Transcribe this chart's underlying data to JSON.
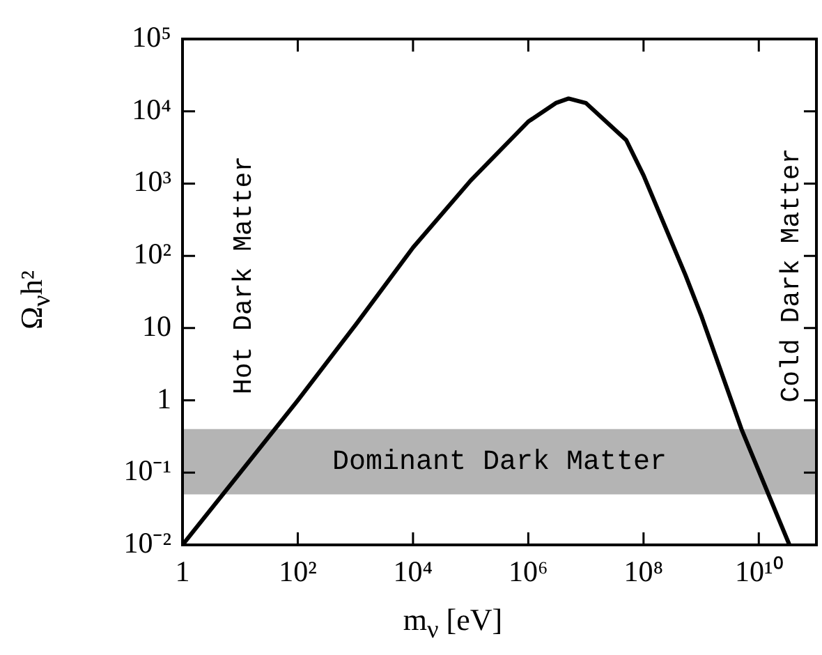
{
  "chart_data": {
    "type": "line",
    "xlabel": "m$_{ν}$ [eV]",
    "ylabel": "Ω$_{ν}$h²",
    "log": "xy",
    "grid": false,
    "legend": false,
    "marker": "none",
    "line_style": "solid",
    "xlim": [
      1,
      100000000000
    ],
    "ylim": [
      0.01,
      100000
    ],
    "xticks": [
      1,
      {
        "value": 100,
        "label": "10²"
      },
      {
        "value": 10000,
        "label": "10⁴"
      },
      {
        "value": 1000000,
        "label": "10⁶"
      },
      {
        "value": 100000000,
        "label": "10⁸"
      },
      {
        "value": 10000000000,
        "label": "10¹⁰"
      }
    ],
    "yticks": [
      {
        "value": 0.01,
        "label": "10⁻²"
      },
      {
        "value": 0.1,
        "label": "10⁻¹"
      },
      1,
      10,
      {
        "value": 100,
        "label": "10²"
      },
      {
        "value": 1000,
        "label": "10³"
      },
      {
        "value": 10000,
        "label": "10⁴"
      },
      {
        "value": 100000,
        "label": "10⁵"
      }
    ],
    "series": [
      {
        "color": "#000000",
        "x": [
          1,
          10,
          100,
          1000,
          10000,
          100000,
          1000000,
          3000000,
          5000000,
          10000000,
          50000000,
          100000000,
          530000000,
          1000000000,
          5000000000,
          34000000000
        ],
        "values": [
          0.01,
          0.1,
          1,
          11,
          130,
          1100,
          7200,
          13000,
          15000,
          13000,
          4000,
          1300,
          55,
          15,
          0.4,
          0.01
        ]
      }
    ],
    "bands": [
      {
        "axis": "y",
        "from": 0.05,
        "to": 0.4,
        "label": "Dominant Dark Matter",
        "color": "#b4b4b4"
      }
    ],
    "annotations": [
      "Hot Dark Matter",
      "Cold Dark Matter"
    ]
  }
}
